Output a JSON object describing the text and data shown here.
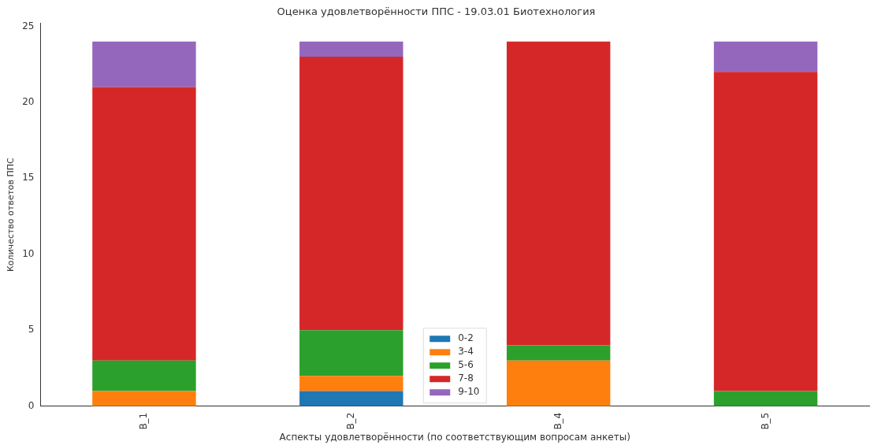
{
  "chart_data": {
    "type": "bar",
    "title": "Оценка удовлетворённости ППС - 19.03.01 Биотехнология",
    "xlabel": "Аспекты удовлетворённости (по соответствующим вопросам анкеты)",
    "ylabel": "Количество ответов ППС",
    "categories": [
      "B_1",
      "B_2",
      "B_4",
      "B_5"
    ],
    "series": [
      {
        "name": "0-2",
        "color": "#1f77b4",
        "values": [
          0,
          1,
          0,
          0
        ]
      },
      {
        "name": "3-4",
        "color": "#ff7f0e",
        "values": [
          1,
          1,
          3,
          0
        ]
      },
      {
        "name": "5-6",
        "color": "#2ca02c",
        "values": [
          2,
          3,
          1,
          1
        ]
      },
      {
        "name": "7-8",
        "color": "#d62728",
        "values": [
          18,
          18,
          20,
          21
        ]
      },
      {
        "name": "9-10",
        "color": "#9467bd",
        "values": [
          3,
          1,
          0,
          2
        ]
      }
    ],
    "stacked": true,
    "ylim": [
      0,
      25.2
    ],
    "yticks": [
      0,
      5,
      10,
      15,
      20,
      25
    ],
    "grid": false,
    "legend": "bottom"
  }
}
